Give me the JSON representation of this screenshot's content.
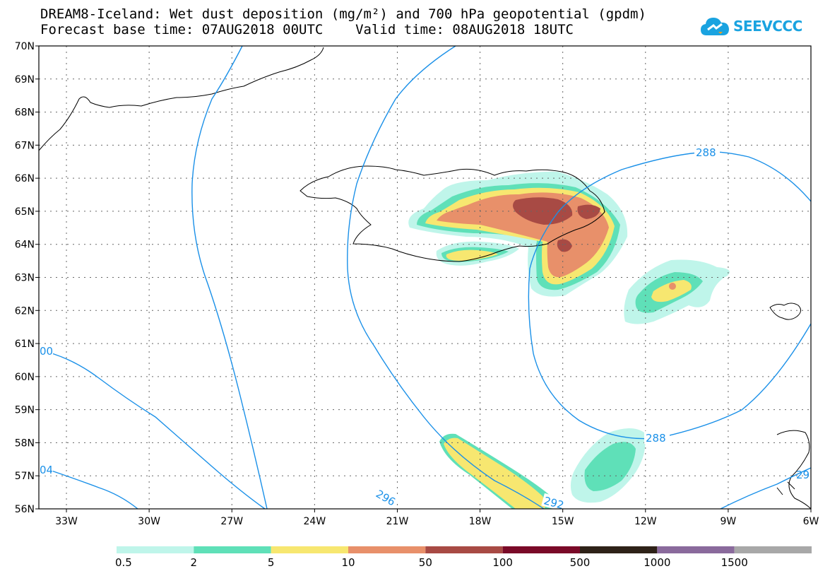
{
  "title_line1": "DREAM8-Iceland: Wet dust deposition (mg/m²) and 700 hPa geopotential (gpdm)",
  "title_line2": "Forecast base time: 07AUG2018 00UTC    Valid time: 08AUG2018 18UTC",
  "logo_text": "SEEVCCC",
  "icons": {
    "logo": "cloud-logo-icon"
  },
  "map": {
    "lon_range": [
      -34,
      -6
    ],
    "lat_range": [
      56,
      70
    ],
    "lon_ticks": [
      "33W",
      "30W",
      "27W",
      "24W",
      "21W",
      "18W",
      "15W",
      "12W",
      "9W",
      "6W"
    ],
    "lat_ticks": [
      "70N",
      "69N",
      "68N",
      "67N",
      "66N",
      "65N",
      "64N",
      "63N",
      "62N",
      "61N",
      "60N",
      "59N",
      "58N",
      "57N",
      "56N"
    ],
    "contour_labels": [
      "288",
      "288",
      "296",
      "292",
      "00",
      "04",
      "29"
    ]
  },
  "legend": {
    "colors": [
      "#bff5ea",
      "#5fe0b8",
      "#f7e770",
      "#e8906a",
      "#a84a44",
      "#7a0a28",
      "#2e2218",
      "#8a6a9c",
      "#a8a8a8"
    ],
    "labels": [
      "0.5",
      "2",
      "5",
      "10",
      "50",
      "100",
      "500",
      "1000",
      "1500"
    ]
  }
}
